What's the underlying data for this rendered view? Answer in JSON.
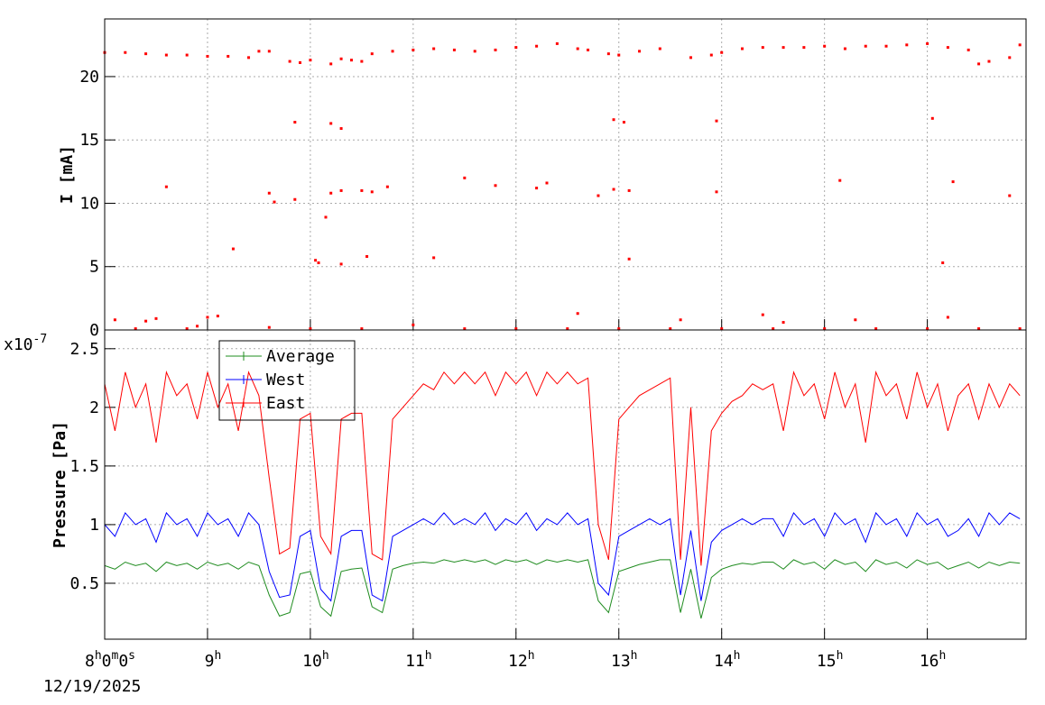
{
  "chart_data": [
    {
      "type": "scatter",
      "y_label": "I [mA]",
      "xlim": [
        8,
        16.96
      ],
      "ylim": [
        0,
        24.55
      ],
      "yticks": [
        0,
        5,
        10,
        15,
        20
      ],
      "grid": true,
      "series": [
        {
          "color": "#ff0000",
          "x": [
            8.0,
            8.2,
            8.4,
            8.6,
            8.8,
            9.0,
            9.2,
            9.4,
            9.5,
            9.6,
            9.8,
            9.9,
            10.0,
            10.2,
            10.3,
            10.4,
            10.5,
            10.6,
            10.8,
            11.0,
            11.2,
            11.4,
            11.6,
            11.8,
            12.0,
            12.2,
            12.4,
            12.6,
            12.7,
            12.9,
            13.0,
            13.2,
            13.4,
            13.7,
            13.9,
            14.0,
            14.2,
            14.4,
            14.6,
            14.8,
            15.0,
            15.2,
            15.4,
            15.6,
            15.8,
            16.0,
            16.2,
            16.4,
            16.5,
            16.6,
            16.8,
            16.9,
            9.85,
            10.2,
            10.3,
            12.95,
            13.05,
            13.95,
            16.05,
            8.6,
            9.6,
            9.65,
            9.85,
            10.2,
            10.3,
            10.5,
            10.6,
            10.75,
            11.5,
            11.8,
            12.2,
            12.3,
            12.8,
            12.95,
            13.1,
            13.95,
            15.15,
            16.25,
            16.8,
            10.15,
            9.25,
            10.05,
            10.08,
            10.3,
            10.55,
            11.2,
            13.1,
            16.15,
            8.1,
            8.4,
            8.5,
            9.0,
            9.1,
            8.9,
            9.6,
            11.0,
            12.6,
            13.6,
            14.4,
            14.6,
            15.3,
            16.2,
            8.3,
            8.8,
            10.0,
            10.5,
            11.5,
            12.0,
            12.5,
            13.0,
            13.5,
            14.0,
            14.5,
            15.0,
            15.5,
            16.0,
            16.5,
            16.9
          ],
          "values": [
            21.9,
            21.9,
            21.8,
            21.7,
            21.7,
            21.6,
            21.6,
            21.5,
            22.0,
            22.0,
            21.2,
            21.1,
            21.3,
            21.0,
            21.4,
            21.3,
            21.2,
            21.8,
            22.0,
            22.1,
            22.2,
            22.1,
            22.0,
            22.1,
            22.3,
            22.4,
            22.6,
            22.2,
            22.1,
            21.8,
            21.7,
            22.0,
            22.2,
            21.5,
            21.7,
            21.9,
            22.2,
            22.3,
            22.3,
            22.3,
            22.4,
            22.2,
            22.4,
            22.4,
            22.5,
            22.6,
            22.3,
            22.1,
            21.0,
            21.2,
            21.5,
            22.5,
            16.4,
            16.3,
            15.9,
            16.6,
            16.4,
            16.5,
            16.7,
            11.3,
            10.8,
            10.1,
            10.3,
            10.8,
            11.0,
            11.0,
            10.9,
            11.3,
            12.0,
            11.4,
            11.2,
            11.6,
            10.6,
            11.1,
            11.0,
            10.9,
            11.8,
            11.7,
            10.6,
            8.9,
            6.4,
            5.5,
            5.3,
            5.2,
            5.8,
            5.7,
            5.6,
            5.3,
            0.8,
            0.7,
            0.9,
            1.0,
            1.1,
            0.3,
            0.2,
            0.4,
            1.3,
            0.8,
            1.2,
            0.6,
            0.8,
            1.0,
            0.1,
            0.1,
            0.1,
            0.1,
            0.1,
            0.1,
            0.1,
            0.1,
            0.1,
            0.1,
            0.1,
            0.1,
            0.1,
            0.1,
            0.1,
            0.1
          ]
        }
      ]
    },
    {
      "type": "line",
      "y_label": "Pressure [Pa]",
      "y_exponent_label": "x10-7",
      "x_date_label": "12/19/2025",
      "xlim": [
        8,
        16.96
      ],
      "ylim": [
        0.023,
        2.66
      ],
      "yticks": [
        0.5,
        1,
        1.5,
        2,
        2.5
      ],
      "grid": true,
      "legend": "top-left",
      "xticks": [
        {
          "value": 8,
          "label": "8h0m0s"
        },
        {
          "value": 9,
          "label": "9h"
        },
        {
          "value": 10,
          "label": "10h"
        },
        {
          "value": 11,
          "label": "11h"
        },
        {
          "value": 12,
          "label": "12h"
        },
        {
          "value": 13,
          "label": "13h"
        },
        {
          "value": 14,
          "label": "14h"
        },
        {
          "value": 15,
          "label": "15h"
        },
        {
          "value": 16,
          "label": "16h"
        }
      ],
      "x": [
        8.0,
        8.1,
        8.2,
        8.3,
        8.4,
        8.5,
        8.6,
        8.7,
        8.8,
        8.9,
        9.0,
        9.1,
        9.2,
        9.3,
        9.4,
        9.5,
        9.6,
        9.7,
        9.8,
        9.9,
        10.0,
        10.1,
        10.2,
        10.3,
        10.4,
        10.5,
        10.6,
        10.7,
        10.8,
        10.9,
        11.0,
        11.1,
        11.2,
        11.3,
        11.4,
        11.5,
        11.6,
        11.7,
        11.8,
        11.9,
        12.0,
        12.1,
        12.2,
        12.3,
        12.4,
        12.5,
        12.6,
        12.7,
        12.8,
        12.9,
        13.0,
        13.1,
        13.2,
        13.3,
        13.4,
        13.5,
        13.6,
        13.7,
        13.8,
        13.9,
        14.0,
        14.1,
        14.2,
        14.3,
        14.4,
        14.5,
        14.6,
        14.7,
        14.8,
        14.9,
        15.0,
        15.1,
        15.2,
        15.3,
        15.4,
        15.5,
        15.6,
        15.7,
        15.8,
        15.9,
        16.0,
        16.1,
        16.2,
        16.3,
        16.4,
        16.5,
        16.6,
        16.7,
        16.8,
        16.9
      ],
      "series": [
        {
          "name": "Average",
          "color": "#1f8c1f",
          "values": [
            0.65,
            0.62,
            0.68,
            0.65,
            0.67,
            0.6,
            0.68,
            0.65,
            0.67,
            0.62,
            0.68,
            0.65,
            0.67,
            0.62,
            0.68,
            0.65,
            0.4,
            0.22,
            0.25,
            0.58,
            0.6,
            0.3,
            0.22,
            0.6,
            0.62,
            0.63,
            0.3,
            0.25,
            0.62,
            0.65,
            0.67,
            0.68,
            0.67,
            0.7,
            0.68,
            0.7,
            0.68,
            0.7,
            0.66,
            0.7,
            0.68,
            0.7,
            0.66,
            0.7,
            0.68,
            0.7,
            0.68,
            0.7,
            0.35,
            0.25,
            0.6,
            0.63,
            0.66,
            0.68,
            0.7,
            0.7,
            0.25,
            0.62,
            0.2,
            0.55,
            0.62,
            0.65,
            0.67,
            0.66,
            0.68,
            0.68,
            0.62,
            0.7,
            0.66,
            0.68,
            0.62,
            0.7,
            0.66,
            0.68,
            0.6,
            0.7,
            0.66,
            0.68,
            0.63,
            0.7,
            0.66,
            0.68,
            0.62,
            0.65,
            0.68,
            0.63,
            0.68,
            0.65,
            0.68,
            0.67
          ]
        },
        {
          "name": "West",
          "color": "#0000ff",
          "values": [
            1.0,
            0.9,
            1.1,
            1.0,
            1.05,
            0.85,
            1.1,
            1.0,
            1.05,
            0.9,
            1.1,
            1.0,
            1.05,
            0.9,
            1.1,
            1.0,
            0.6,
            0.38,
            0.4,
            0.9,
            0.95,
            0.45,
            0.35,
            0.9,
            0.95,
            0.95,
            0.4,
            0.35,
            0.9,
            0.95,
            1.0,
            1.05,
            1.0,
            1.1,
            1.0,
            1.05,
            1.0,
            1.1,
            0.95,
            1.05,
            1.0,
            1.1,
            0.95,
            1.05,
            1.0,
            1.1,
            1.0,
            1.05,
            0.5,
            0.4,
            0.9,
            0.95,
            1.0,
            1.05,
            1.0,
            1.05,
            0.4,
            0.95,
            0.35,
            0.85,
            0.95,
            1.0,
            1.05,
            1.0,
            1.05,
            1.05,
            0.9,
            1.1,
            1.0,
            1.05,
            0.9,
            1.1,
            1.0,
            1.05,
            0.85,
            1.1,
            1.0,
            1.05,
            0.9,
            1.1,
            1.0,
            1.05,
            0.9,
            0.95,
            1.05,
            0.9,
            1.1,
            1.0,
            1.1,
            1.05
          ]
        },
        {
          "name": "East",
          "color": "#ff0000",
          "values": [
            2.2,
            1.8,
            2.3,
            2.0,
            2.2,
            1.7,
            2.3,
            2.1,
            2.2,
            1.9,
            2.3,
            2.0,
            2.2,
            1.8,
            2.3,
            2.1,
            1.4,
            0.75,
            0.8,
            1.9,
            1.95,
            0.9,
            0.75,
            1.9,
            1.95,
            1.95,
            0.75,
            0.7,
            1.9,
            2.0,
            2.1,
            2.2,
            2.15,
            2.3,
            2.2,
            2.3,
            2.2,
            2.3,
            2.1,
            2.3,
            2.2,
            2.3,
            2.1,
            2.3,
            2.2,
            2.3,
            2.2,
            2.25,
            1.0,
            0.7,
            1.9,
            2.0,
            2.1,
            2.15,
            2.2,
            2.25,
            0.7,
            2.0,
            0.65,
            1.8,
            1.95,
            2.05,
            2.1,
            2.2,
            2.15,
            2.2,
            1.8,
            2.3,
            2.1,
            2.2,
            1.9,
            2.3,
            2.0,
            2.2,
            1.7,
            2.3,
            2.1,
            2.2,
            1.9,
            2.3,
            2.0,
            2.2,
            1.8,
            2.1,
            2.2,
            1.9,
            2.2,
            2.0,
            2.2,
            2.1
          ]
        }
      ]
    }
  ]
}
